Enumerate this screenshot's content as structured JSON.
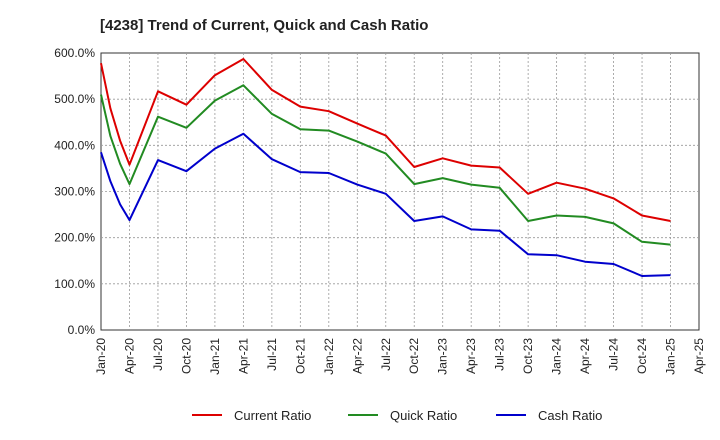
{
  "chart_data": {
    "type": "line",
    "title": "[4238]  Trend of Current, Quick and Cash Ratio",
    "xlabel": "",
    "ylabel": "",
    "ylim": [
      0,
      600
    ],
    "y_ticks": [
      "0.0%",
      "100.0%",
      "200.0%",
      "300.0%",
      "400.0%",
      "500.0%",
      "600.0%"
    ],
    "x_tick_labels": [
      "Jan-20",
      "Apr-20",
      "Jul-20",
      "Oct-20",
      "Jan-21",
      "Apr-21",
      "Jul-21",
      "Oct-21",
      "Jan-22",
      "Apr-22",
      "Jul-22",
      "Oct-22",
      "Jan-23",
      "Apr-23",
      "Jul-23",
      "Oct-23",
      "Jan-24",
      "Apr-24",
      "Jul-24",
      "Oct-24",
      "Jan-25",
      "Apr-25"
    ],
    "grid": true,
    "legend_position": "bottom",
    "x": [
      "Jan-20",
      "Feb-20",
      "Mar-20",
      "Apr-20",
      "Jul-20",
      "Oct-20",
      "Jan-21",
      "Apr-21",
      "Jul-21",
      "Oct-21",
      "Jan-22",
      "Apr-22",
      "Jul-22",
      "Oct-22",
      "Jan-23",
      "Apr-23",
      "Jul-23",
      "Oct-23",
      "Jan-24",
      "Apr-24",
      "Jul-24",
      "Oct-24",
      "Jan-25"
    ],
    "x_index": [
      0,
      0.33,
      0.67,
      1,
      2,
      3,
      4,
      5,
      6,
      7,
      8,
      9,
      10,
      11,
      12,
      13,
      14,
      15,
      16,
      17,
      18,
      19,
      20
    ],
    "series": [
      {
        "name": "Current Ratio",
        "color": "#dd0000",
        "values": [
          578,
          480,
          410,
          358,
          517,
          488,
          552,
          587,
          520,
          484,
          474,
          447,
          421,
          353,
          372,
          356,
          352,
          295,
          319,
          306,
          285,
          248,
          236
        ]
      },
      {
        "name": "Quick Ratio",
        "color": "#228b22",
        "values": [
          510,
          420,
          360,
          316,
          462,
          438,
          497,
          530,
          468,
          435,
          432,
          408,
          382,
          316,
          329,
          315,
          308,
          236,
          248,
          245,
          231,
          191,
          185
        ]
      },
      {
        "name": "Cash Ratio",
        "color": "#0000cc",
        "values": [
          385,
          322,
          272,
          238,
          368,
          344,
          393,
          425,
          370,
          342,
          340,
          315,
          295,
          236,
          246,
          218,
          215,
          164,
          162,
          148,
          143,
          117,
          119
        ]
      }
    ]
  }
}
